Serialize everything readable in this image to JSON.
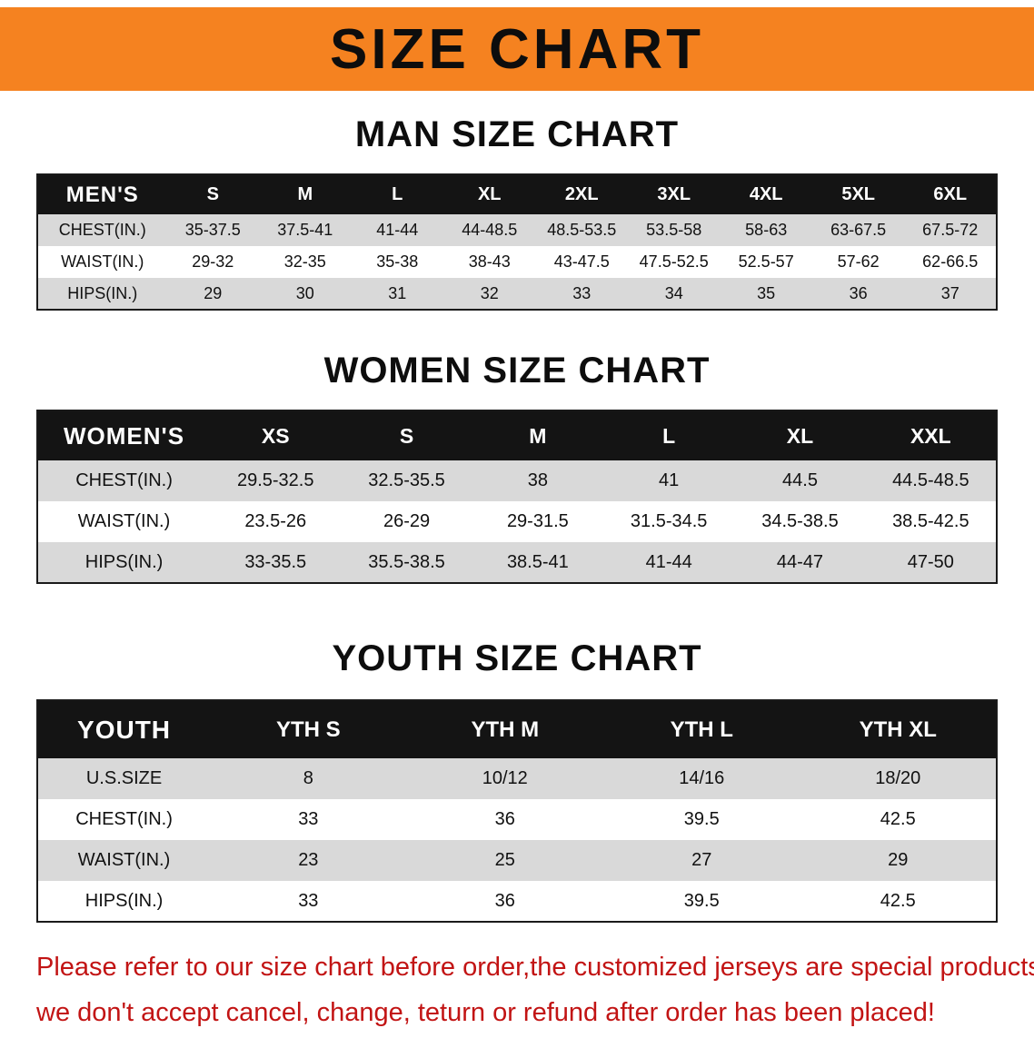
{
  "banner": {
    "title": "SIZE CHART"
  },
  "sections": [
    {
      "heading": "MAN SIZE CHART",
      "table": {
        "header": [
          "MEN'S",
          "S",
          "M",
          "L",
          "XL",
          "2XL",
          "3XL",
          "4XL",
          "5XL",
          "6XL"
        ],
        "rows": [
          [
            "CHEST(IN.)",
            "35-37.5",
            "37.5-41",
            "41-44",
            "44-48.5",
            "48.5-53.5",
            "53.5-58",
            "58-63",
            "63-67.5",
            "67.5-72"
          ],
          [
            "WAIST(IN.)",
            "29-32",
            "32-35",
            "35-38",
            "38-43",
            "43-47.5",
            "47.5-52.5",
            "52.5-57",
            "57-62",
            "62-66.5"
          ],
          [
            "HIPS(IN.)",
            "29",
            "30",
            "31",
            "32",
            "33",
            "34",
            "35",
            "36",
            "37"
          ]
        ]
      }
    },
    {
      "heading": "WOMEN SIZE CHART",
      "table": {
        "header": [
          "WOMEN'S",
          "XS",
          "S",
          "M",
          "L",
          "XL",
          "XXL"
        ],
        "rows": [
          [
            "CHEST(IN.)",
            "29.5-32.5",
            "32.5-35.5",
            "38",
            "41",
            "44.5",
            "44.5-48.5"
          ],
          [
            "WAIST(IN.)",
            "23.5-26",
            "26-29",
            "29-31.5",
            "31.5-34.5",
            "34.5-38.5",
            "38.5-42.5"
          ],
          [
            "HIPS(IN.)",
            "33-35.5",
            "35.5-38.5",
            "38.5-41",
            "41-44",
            "44-47",
            "47-50"
          ]
        ]
      }
    },
    {
      "heading": "YOUTH SIZE CHART",
      "table": {
        "header": [
          "YOUTH",
          "YTH S",
          "YTH M",
          "YTH L",
          "YTH XL"
        ],
        "rows": [
          [
            "U.S.SIZE",
            "8",
            "10/12",
            "14/16",
            "18/20"
          ],
          [
            "CHEST(IN.)",
            "33",
            "36",
            "39.5",
            "42.5"
          ],
          [
            "WAIST(IN.)",
            "23",
            "25",
            "27",
            "29"
          ],
          [
            "HIPS(IN.)",
            "33",
            "36",
            "39.5",
            "42.5"
          ]
        ]
      }
    }
  ],
  "footer": {
    "line1": "Please refer to our size chart before order,the customized jerseys are special products,",
    "line2": "we don't accept cancel, change, teturn or refund after order has been placed!"
  },
  "colors": {
    "banner_orange": "#f58220",
    "table_header_black": "#141414",
    "row_stripe_gray": "#d9d9d9",
    "disclaimer_red": "#c21414"
  }
}
